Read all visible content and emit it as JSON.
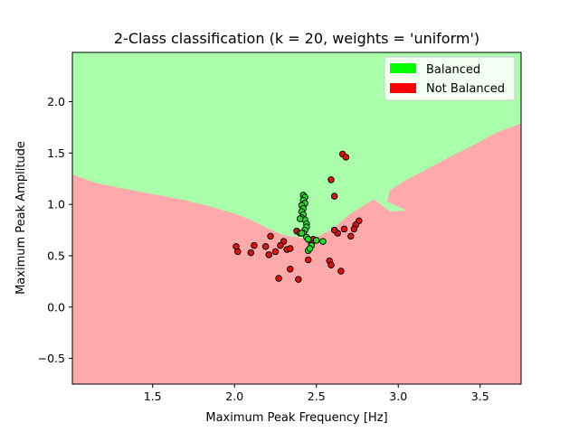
{
  "chart_data": {
    "type": "scatter",
    "title": "2-Class classification (k = 20, weights = 'uniform')",
    "xlabel": "Maximum Peak Frequency [Hz]",
    "ylabel": "Maximum Peak Amplitude",
    "xlim": [
      1.01,
      3.75
    ],
    "ylim": [
      -0.75,
      2.48
    ],
    "x_ticks": [
      1.5,
      2.0,
      2.5,
      3.0,
      3.5
    ],
    "y_ticks": [
      -0.5,
      0.0,
      0.5,
      1.0,
      1.5,
      2.0
    ],
    "x_tick_labels": [
      "1.5",
      "2.0",
      "2.5",
      "3.0",
      "3.5"
    ],
    "y_tick_labels": [
      "−0.5",
      "0.0",
      "0.5",
      "1.0",
      "1.5",
      "2.0"
    ],
    "legend": {
      "position": "top-right",
      "entries": [
        {
          "label": "Balanced",
          "color": "#00ff00"
        },
        {
          "label": "Not Balanced",
          "color": "#ff0000"
        }
      ]
    },
    "region_colors": {
      "Balanced": "#aaffaa",
      "Not Balanced": "#ffaaaa"
    },
    "boundary": [
      [
        1.01,
        1.29
      ],
      [
        1.15,
        1.21
      ],
      [
        1.3,
        1.16
      ],
      [
        1.5,
        1.1
      ],
      [
        1.7,
        1.04
      ],
      [
        1.85,
        0.98
      ],
      [
        2.0,
        0.91
      ],
      [
        2.1,
        0.85
      ],
      [
        2.2,
        0.77
      ],
      [
        2.3,
        0.7
      ],
      [
        2.42,
        0.67
      ],
      [
        2.5,
        0.68
      ],
      [
        2.6,
        0.76
      ],
      [
        2.7,
        0.9
      ],
      [
        2.75,
        0.95
      ],
      [
        2.85,
        1.05
      ],
      [
        2.95,
        0.93
      ],
      [
        3.05,
        0.94
      ],
      [
        2.93,
        1.03
      ],
      [
        2.95,
        1.14
      ],
      [
        3.05,
        1.24
      ],
      [
        3.15,
        1.32
      ],
      [
        3.3,
        1.45
      ],
      [
        3.45,
        1.57
      ],
      [
        3.6,
        1.7
      ],
      [
        3.75,
        1.79
      ]
    ],
    "series": [
      {
        "name": "Balanced",
        "color": "#22dd22",
        "points": [
          [
            2.42,
            1.09
          ],
          [
            2.43,
            1.07
          ],
          [
            2.42,
            1.04
          ],
          [
            2.43,
            1.01
          ],
          [
            2.41,
            0.99
          ],
          [
            2.42,
            0.96
          ],
          [
            2.41,
            0.93
          ],
          [
            2.42,
            0.9
          ],
          [
            2.41,
            0.87
          ],
          [
            2.43,
            0.85
          ],
          [
            2.44,
            0.81
          ],
          [
            2.44,
            0.78
          ],
          [
            2.43,
            0.75
          ],
          [
            2.42,
            0.72
          ],
          [
            2.44,
            0.68
          ],
          [
            2.45,
            0.66
          ],
          [
            2.47,
            0.6
          ],
          [
            2.45,
            0.55
          ],
          [
            2.46,
            0.57
          ],
          [
            2.5,
            0.65
          ],
          [
            2.54,
            0.64
          ],
          [
            2.4,
            0.86
          ],
          [
            2.41,
            0.72
          ]
        ]
      },
      {
        "name": "Not Balanced",
        "color": "#dd1111",
        "points": [
          [
            2.66,
            1.49
          ],
          [
            2.68,
            1.46
          ],
          [
            2.59,
            1.24
          ],
          [
            2.61,
            1.08
          ],
          [
            2.76,
            0.84
          ],
          [
            2.74,
            0.8
          ],
          [
            2.73,
            0.76
          ],
          [
            2.67,
            0.76
          ],
          [
            2.63,
            0.72
          ],
          [
            2.61,
            0.75
          ],
          [
            2.71,
            0.69
          ],
          [
            2.38,
            0.74
          ],
          [
            2.4,
            0.72
          ],
          [
            2.22,
            0.69
          ],
          [
            2.3,
            0.64
          ],
          [
            2.28,
            0.6
          ],
          [
            2.19,
            0.59
          ],
          [
            2.12,
            0.6
          ],
          [
            2.01,
            0.59
          ],
          [
            2.02,
            0.54
          ],
          [
            2.1,
            0.53
          ],
          [
            2.21,
            0.51
          ],
          [
            2.25,
            0.54
          ],
          [
            2.32,
            0.56
          ],
          [
            2.34,
            0.57
          ],
          [
            2.48,
            0.66
          ],
          [
            2.47,
            0.62
          ],
          [
            2.58,
            0.45
          ],
          [
            2.59,
            0.41
          ],
          [
            2.45,
            0.46
          ],
          [
            2.34,
            0.37
          ],
          [
            2.65,
            0.35
          ],
          [
            2.27,
            0.28
          ],
          [
            2.39,
            0.27
          ]
        ]
      }
    ]
  }
}
